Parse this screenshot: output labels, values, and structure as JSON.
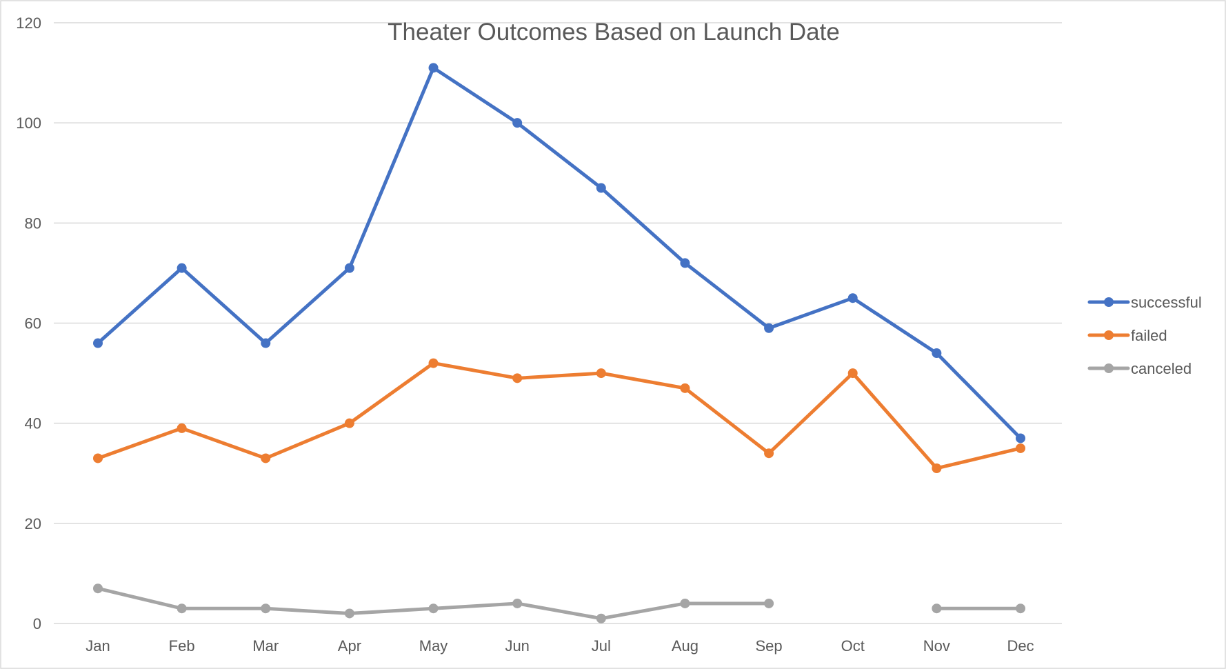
{
  "chart_data": {
    "type": "line",
    "title": "Theater Outcomes Based on Launch Date",
    "xlabel": "",
    "ylabel": "",
    "categories": [
      "Jan",
      "Feb",
      "Mar",
      "Apr",
      "May",
      "Jun",
      "Jul",
      "Aug",
      "Sep",
      "Oct",
      "Nov",
      "Dec"
    ],
    "ylim": [
      0,
      120
    ],
    "yticks": [
      "0",
      "20",
      "40",
      "60",
      "80",
      "100",
      "120"
    ],
    "grid": true,
    "legend_position": "right",
    "series": [
      {
        "name": "successful",
        "color": "#4472c4",
        "values": [
          56,
          71,
          56,
          71,
          111,
          100,
          87,
          72,
          59,
          65,
          54,
          37
        ]
      },
      {
        "name": "failed",
        "color": "#ed7d31",
        "values": [
          33,
          39,
          33,
          40,
          52,
          49,
          50,
          47,
          34,
          50,
          31,
          35
        ]
      },
      {
        "name": "canceled",
        "color": "#a5a5a5",
        "values": [
          7,
          3,
          3,
          2,
          3,
          4,
          1,
          4,
          4,
          null,
          3,
          3
        ]
      }
    ]
  }
}
